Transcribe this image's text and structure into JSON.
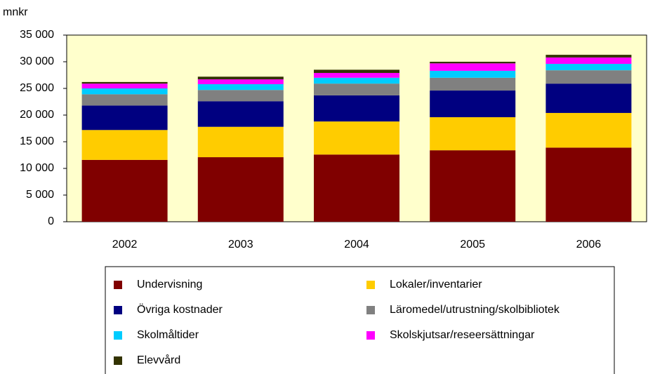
{
  "chart_data": {
    "type": "stacked-bar",
    "ylabel": "mnkr",
    "categories": [
      "2002",
      "2003",
      "2004",
      "2005",
      "2006"
    ],
    "series": [
      {
        "name": "Undervisning",
        "color": "#800000",
        "values": [
          11600,
          12100,
          12600,
          13400,
          13900
        ]
      },
      {
        "name": "Lokaler/inventarier",
        "color": "#ffcc00",
        "values": [
          5600,
          5700,
          6200,
          6200,
          6500
        ]
      },
      {
        "name": "Övriga kostnader",
        "color": "#000080",
        "values": [
          4600,
          4800,
          4900,
          5000,
          5500
        ]
      },
      {
        "name": "Läromedel/utrustning/skolbibliotek",
        "color": "#808080",
        "values": [
          2100,
          2100,
          2200,
          2400,
          2500
        ]
      },
      {
        "name": "Skolmåltider",
        "color": "#00ccff",
        "values": [
          1100,
          1100,
          1100,
          1300,
          1200
        ]
      },
      {
        "name": "Skolskjutsar/reseersättningar",
        "color": "#ff00ff",
        "values": [
          900,
          900,
          900,
          1400,
          1200
        ]
      },
      {
        "name": "Elevvård",
        "color": "#333300",
        "values": [
          300,
          500,
          600,
          300,
          500
        ]
      }
    ],
    "ylim": [
      0,
      35000
    ],
    "yticks": [
      0,
      {
        "value": 5000,
        "label": "5 000"
      },
      {
        "value": 10000,
        "label": "10 000"
      },
      {
        "value": 15000,
        "label": "15 000"
      },
      {
        "value": 20000,
        "label": "20 000"
      },
      {
        "value": 25000,
        "label": "25 000"
      },
      {
        "value": 30000,
        "label": "30 000"
      },
      {
        "value": 35000,
        "label": "35 000"
      }
    ],
    "plot_background": "#ffffcc"
  }
}
